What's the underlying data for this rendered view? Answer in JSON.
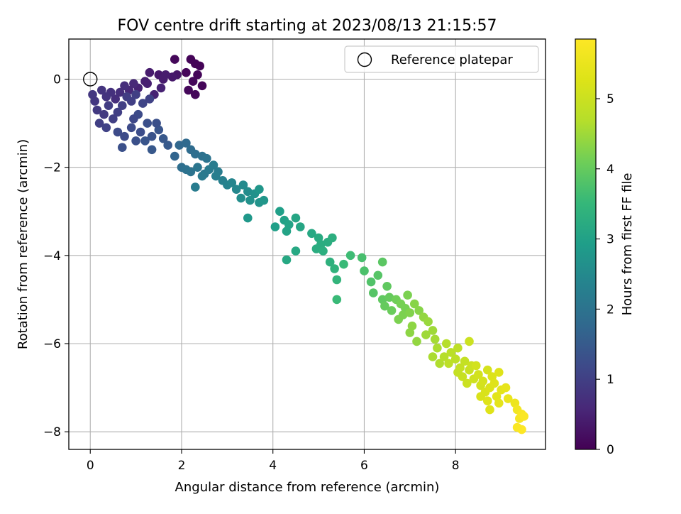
{
  "chart_data": {
    "type": "scatter",
    "title": "FOV centre drift starting at 2023/08/13 21:15:57",
    "xlabel": "Angular distance from reference (arcmin)",
    "ylabel": "Rotation from reference (arcmin)",
    "xlim": [
      -0.47,
      9.97
    ],
    "ylim": [
      -8.4,
      0.91
    ],
    "xticks": [
      0,
      2,
      4,
      6,
      8
    ],
    "yticks": [
      0,
      -2,
      -4,
      -6,
      -8
    ],
    "grid": true,
    "legend": {
      "position": "top-right",
      "entries": [
        {
          "label": "Reference platepar",
          "marker": "open-circle"
        }
      ]
    },
    "reference_point": {
      "x": 0,
      "y": 0
    },
    "colorbar": {
      "label": "Hours from first FF file",
      "colormap": "viridis",
      "range": [
        0,
        5.85
      ],
      "ticks": [
        0,
        1,
        2,
        3,
        4,
        5
      ]
    },
    "points": [
      [
        2.2,
        0.45,
        0.05
      ],
      [
        2.4,
        0.3,
        0.05
      ],
      [
        2.1,
        0.15,
        0.08
      ],
      [
        2.35,
        0.1,
        0.06
      ],
      [
        2.25,
        -0.05,
        0.1
      ],
      [
        2.15,
        -0.25,
        0.1
      ],
      [
        2.3,
        0.35,
        0.04
      ],
      [
        1.85,
        0.45,
        0.1
      ],
      [
        2.45,
        -0.15,
        0.08
      ],
      [
        2.3,
        -0.35,
        0.1
      ],
      [
        1.9,
        0.1,
        0.3
      ],
      [
        1.8,
        0.05,
        0.35
      ],
      [
        1.5,
        0.1,
        0.35
      ],
      [
        1.3,
        0.15,
        0.4
      ],
      [
        1.25,
        -0.1,
        0.45
      ],
      [
        1.55,
        -0.2,
        0.5
      ],
      [
        1.6,
        0.0,
        0.4
      ],
      [
        1.4,
        -0.35,
        0.5
      ],
      [
        1.2,
        -0.05,
        0.45
      ],
      [
        1.65,
        0.1,
        0.4
      ],
      [
        1.05,
        -0.2,
        0.5
      ],
      [
        0.95,
        -0.1,
        0.6
      ],
      [
        0.85,
        -0.25,
        0.6
      ],
      [
        0.75,
        -0.15,
        0.7
      ],
      [
        0.65,
        -0.3,
        0.7
      ],
      [
        0.55,
        -0.45,
        0.7
      ],
      [
        0.45,
        -0.3,
        0.75
      ],
      [
        0.35,
        -0.4,
        0.8
      ],
      [
        0.25,
        -0.25,
        0.8
      ],
      [
        0.1,
        -0.5,
        0.85
      ],
      [
        0.05,
        -0.35,
        0.85
      ],
      [
        0.15,
        -0.7,
        0.9
      ],
      [
        0.3,
        -0.8,
        0.9
      ],
      [
        0.4,
        -0.6,
        0.95
      ],
      [
        0.5,
        -0.9,
        1.0
      ],
      [
        0.2,
        -1.0,
        1.0
      ],
      [
        0.35,
        -1.1,
        1.05
      ],
      [
        0.6,
        -0.75,
        1.0
      ],
      [
        0.7,
        -0.6,
        1.0
      ],
      [
        0.8,
        -0.4,
        0.95
      ],
      [
        0.9,
        -0.5,
        1.0
      ],
      [
        1.0,
        -0.35,
        1.0
      ],
      [
        1.15,
        -0.55,
        1.1
      ],
      [
        1.3,
        -0.45,
        1.05
      ],
      [
        0.75,
        -1.3,
        1.2
      ],
      [
        0.9,
        -1.1,
        1.2
      ],
      [
        1.0,
        -1.4,
        1.3
      ],
      [
        1.1,
        -1.2,
        1.25
      ],
      [
        1.25,
        -1.0,
        1.3
      ],
      [
        1.35,
        -1.3,
        1.35
      ],
      [
        1.5,
        -1.15,
        1.4
      ],
      [
        1.6,
        -1.35,
        1.45
      ],
      [
        1.7,
        -1.5,
        1.5
      ],
      [
        1.35,
        -1.6,
        1.45
      ],
      [
        1.2,
        -1.4,
        1.4
      ],
      [
        0.7,
        -1.55,
        1.3
      ],
      [
        1.45,
        -1.0,
        1.3
      ],
      [
        1.05,
        -0.8,
        1.2
      ],
      [
        0.95,
        -0.9,
        1.15
      ],
      [
        0.6,
        -1.2,
        1.2
      ],
      [
        1.85,
        -1.75,
        1.7
      ],
      [
        1.95,
        -1.5,
        1.75
      ],
      [
        2.1,
        -1.45,
        1.8
      ],
      [
        2.2,
        -1.6,
        1.85
      ],
      [
        2.3,
        -1.7,
        1.9
      ],
      [
        2.45,
        -1.75,
        1.95
      ],
      [
        2.55,
        -1.8,
        2.0
      ],
      [
        2.0,
        -2.0,
        1.9
      ],
      [
        2.1,
        -2.05,
        1.95
      ],
      [
        2.2,
        -2.1,
        2.0
      ],
      [
        2.35,
        -2.0,
        2.05
      ],
      [
        2.5,
        -2.15,
        2.1
      ],
      [
        2.6,
        -2.05,
        2.15
      ],
      [
        2.7,
        -1.95,
        2.2
      ],
      [
        2.8,
        -2.1,
        2.2
      ],
      [
        2.9,
        -2.3,
        2.3
      ],
      [
        3.0,
        -2.4,
        2.35
      ],
      [
        2.3,
        -2.45,
        2.2
      ],
      [
        2.45,
        -2.2,
        2.15
      ],
      [
        2.75,
        -2.2,
        2.25
      ],
      [
        3.1,
        -2.35,
        2.4
      ],
      [
        3.2,
        -2.5,
        2.45
      ],
      [
        3.35,
        -2.4,
        2.5
      ],
      [
        3.45,
        -2.55,
        2.55
      ],
      [
        3.3,
        -2.7,
        2.6
      ],
      [
        3.5,
        -2.75,
        2.65
      ],
      [
        3.6,
        -2.6,
        2.65
      ],
      [
        3.7,
        -2.8,
        2.7
      ],
      [
        3.8,
        -2.75,
        2.75
      ],
      [
        3.45,
        -3.15,
        2.8
      ],
      [
        3.7,
        -2.5,
        2.75
      ],
      [
        4.05,
        -3.35,
        2.95
      ],
      [
        4.15,
        -3.0,
        2.95
      ],
      [
        4.25,
        -3.2,
        3.0
      ],
      [
        4.35,
        -3.3,
        3.05
      ],
      [
        4.5,
        -3.15,
        3.1
      ],
      [
        4.3,
        -3.45,
        3.05
      ],
      [
        4.6,
        -3.35,
        3.1
      ],
      [
        4.85,
        -3.5,
        3.15
      ],
      [
        5.0,
        -3.6,
        3.2
      ],
      [
        5.05,
        -3.75,
        3.25
      ],
      [
        5.2,
        -3.7,
        3.25
      ],
      [
        5.3,
        -3.6,
        3.3
      ],
      [
        4.95,
        -3.85,
        3.25
      ],
      [
        5.1,
        -3.9,
        3.3
      ],
      [
        4.5,
        -3.9,
        3.15
      ],
      [
        4.3,
        -4.1,
        3.15
      ],
      [
        5.25,
        -4.15,
        3.35
      ],
      [
        5.35,
        -4.3,
        3.4
      ],
      [
        5.4,
        -4.55,
        3.45
      ],
      [
        5.4,
        -5.0,
        3.55
      ],
      [
        5.55,
        -4.2,
        3.55
      ],
      [
        5.7,
        -4.0,
        3.6
      ],
      [
        5.95,
        -4.05,
        3.7
      ],
      [
        6.0,
        -4.35,
        3.75
      ],
      [
        6.15,
        -4.6,
        3.8
      ],
      [
        6.3,
        -4.45,
        3.85
      ],
      [
        6.2,
        -4.85,
        3.85
      ],
      [
        6.4,
        -4.15,
        3.9
      ],
      [
        6.5,
        -4.7,
        3.95
      ],
      [
        6.4,
        -5.0,
        3.95
      ],
      [
        6.55,
        -4.95,
        4.0
      ],
      [
        6.45,
        -5.15,
        4.0
      ],
      [
        6.6,
        -5.25,
        4.05
      ],
      [
        6.7,
        -5.0,
        4.1
      ],
      [
        6.8,
        -5.1,
        4.15
      ],
      [
        6.9,
        -5.2,
        4.15
      ],
      [
        6.75,
        -5.45,
        4.2
      ],
      [
        6.85,
        -5.35,
        4.2
      ],
      [
        6.95,
        -4.9,
        4.2
      ],
      [
        7.0,
        -5.3,
        4.25
      ],
      [
        7.1,
        -5.1,
        4.3
      ],
      [
        7.2,
        -5.25,
        4.3
      ],
      [
        7.05,
        -5.6,
        4.35
      ],
      [
        7.0,
        -5.75,
        4.35
      ],
      [
        7.15,
        -5.95,
        4.4
      ],
      [
        7.3,
        -5.4,
        4.4
      ],
      [
        7.4,
        -5.5,
        4.45
      ],
      [
        7.5,
        -5.7,
        4.5
      ],
      [
        7.35,
        -5.8,
        4.5
      ],
      [
        7.55,
        -5.9,
        4.55
      ],
      [
        7.6,
        -6.1,
        4.6
      ],
      [
        7.5,
        -6.3,
        4.6
      ],
      [
        7.65,
        -6.45,
        4.65
      ],
      [
        7.75,
        -6.3,
        4.7
      ],
      [
        7.8,
        -6.0,
        4.7
      ],
      [
        7.9,
        -6.2,
        4.75
      ],
      [
        8.0,
        -6.35,
        4.8
      ],
      [
        7.85,
        -6.45,
        4.8
      ],
      [
        8.05,
        -6.1,
        4.8
      ],
      [
        8.1,
        -6.55,
        4.9
      ],
      [
        8.2,
        -6.4,
        4.9
      ],
      [
        8.3,
        -6.6,
        4.95
      ],
      [
        8.15,
        -6.75,
        4.95
      ],
      [
        8.25,
        -6.9,
        5.0
      ],
      [
        8.35,
        -6.5,
        5.0
      ],
      [
        8.4,
        -6.8,
        5.05
      ],
      [
        8.5,
        -6.7,
        5.1
      ],
      [
        8.3,
        -5.95,
        5.0
      ],
      [
        8.55,
        -6.95,
        5.1
      ],
      [
        8.6,
        -6.85,
        5.15
      ],
      [
        8.7,
        -6.6,
        5.15
      ],
      [
        8.65,
        -7.1,
        5.2
      ],
      [
        8.75,
        -7.0,
        5.25
      ],
      [
        8.8,
        -6.75,
        5.25
      ],
      [
        8.85,
        -6.9,
        5.3
      ],
      [
        8.95,
        -6.65,
        5.3
      ],
      [
        8.7,
        -7.3,
        5.3
      ],
      [
        8.75,
        -7.5,
        5.3
      ],
      [
        8.9,
        -7.2,
        5.35
      ],
      [
        9.0,
        -7.05,
        5.4
      ],
      [
        9.1,
        -7.0,
        5.45
      ],
      [
        8.95,
        -7.35,
        5.4
      ],
      [
        9.15,
        -7.25,
        5.5
      ],
      [
        9.3,
        -7.35,
        5.55
      ],
      [
        9.35,
        -7.5,
        5.65
      ],
      [
        9.4,
        -7.7,
        5.7
      ],
      [
        9.45,
        -7.6,
        5.75
      ],
      [
        9.5,
        -7.65,
        5.8
      ],
      [
        9.45,
        -7.95,
        5.85
      ],
      [
        9.35,
        -7.9,
        5.8
      ],
      [
        8.55,
        -7.2,
        5.2
      ],
      [
        8.45,
        -6.5,
        5.1
      ],
      [
        8.05,
        -6.65,
        4.9
      ]
    ]
  }
}
